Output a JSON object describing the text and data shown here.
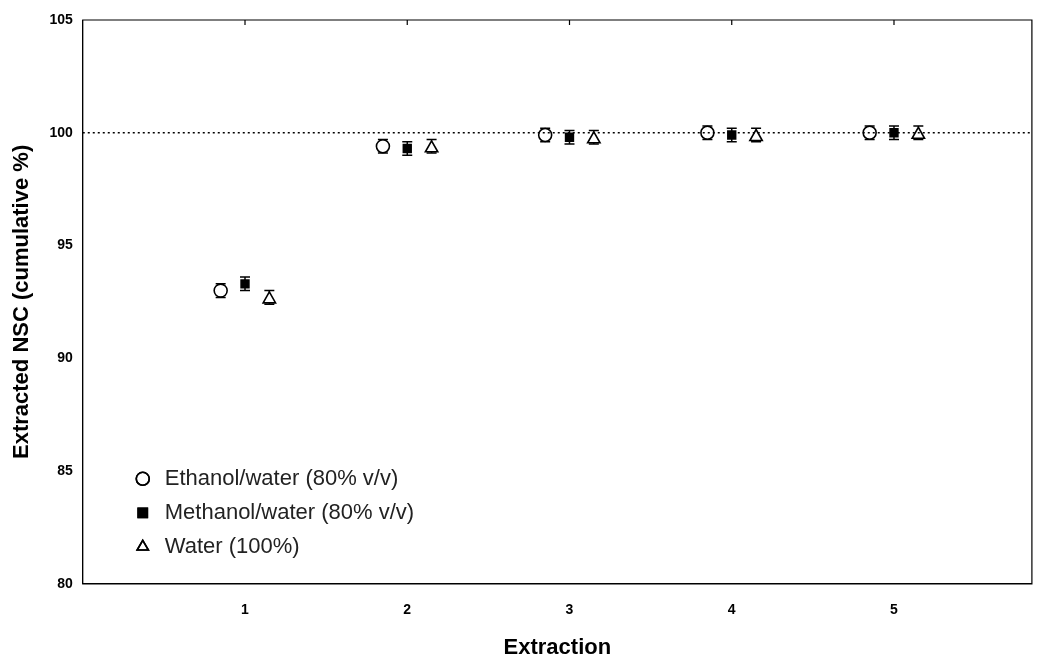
{
  "chart_data": {
    "type": "scatter",
    "xlabel": "Extraction",
    "ylabel": "Extracted NSC (cumulative %)",
    "xlim": [
      0,
      5.85
    ],
    "xticks": [
      1,
      2,
      3,
      4,
      5
    ],
    "ylim": [
      80,
      105
    ],
    "yticks": [
      80,
      85,
      90,
      95,
      100,
      105
    ],
    "grid": false,
    "legend": "bottom left",
    "ref_lines": [
      {
        "axis": "y",
        "value": 100,
        "color": "#000000",
        "line_style": "dotted"
      }
    ],
    "series": [
      {
        "name": "Ethanol/water (80% v/v)",
        "color": "#000000",
        "marker": "circle",
        "x": [
          0.85,
          1.85,
          2.85,
          3.85,
          4.85
        ],
        "values": [
          93.0,
          99.4,
          99.9,
          100.0,
          100.0
        ],
        "errors": [
          0.3,
          0.3,
          0.3,
          0.3,
          0.3
        ]
      },
      {
        "name": "Methanol/water (80% v/v)",
        "color": "#000000",
        "marker": "square",
        "x": [
          1,
          2,
          3,
          4,
          5
        ],
        "values": [
          93.3,
          99.3,
          99.8,
          99.9,
          100.0
        ],
        "errors": [
          0.3,
          0.3,
          0.3,
          0.3,
          0.3
        ]
      },
      {
        "name": "Water (100%)",
        "color": "#000000",
        "marker": "triangle",
        "x": [
          1.15,
          2.15,
          3.15,
          4.15,
          5.15
        ],
        "values": [
          92.7,
          99.4,
          99.8,
          99.9,
          100.0
        ],
        "errors": [
          0.3,
          0.3,
          0.3,
          0.3,
          0.3
        ]
      }
    ]
  }
}
